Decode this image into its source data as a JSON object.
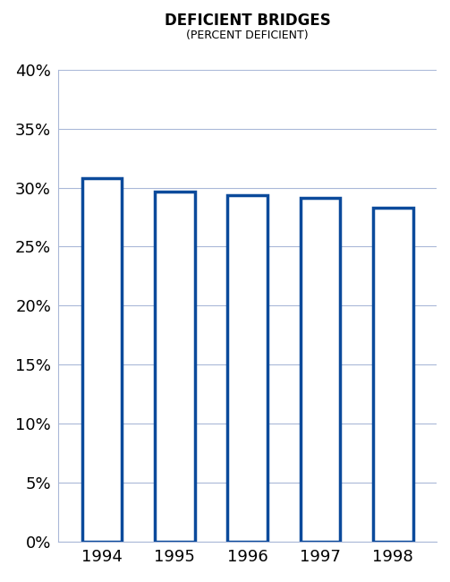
{
  "chart_data": {
    "type": "bar",
    "title": "DEFICIENT BRIDGES",
    "subtitle": "(PERCENT DEFICIENT)",
    "categories": [
      "1994",
      "1995",
      "1996",
      "1997",
      "1998"
    ],
    "values": [
      30.8,
      29.7,
      29.4,
      29.1,
      28.3
    ],
    "color": "#0b4a9b",
    "ylim": [
      0,
      40
    ],
    "yticks": [
      {
        "value": 0,
        "label": "0%"
      },
      {
        "value": 5,
        "label": "5%"
      },
      {
        "value": 10,
        "label": "10%"
      },
      {
        "value": 15,
        "label": "15%"
      },
      {
        "value": 20,
        "label": "20%"
      },
      {
        "value": 25,
        "label": "25%"
      },
      {
        "value": 30,
        "label": "30%"
      },
      {
        "value": 35,
        "label": "35%"
      },
      {
        "value": 40,
        "label": "40%"
      }
    ],
    "grid": true
  }
}
